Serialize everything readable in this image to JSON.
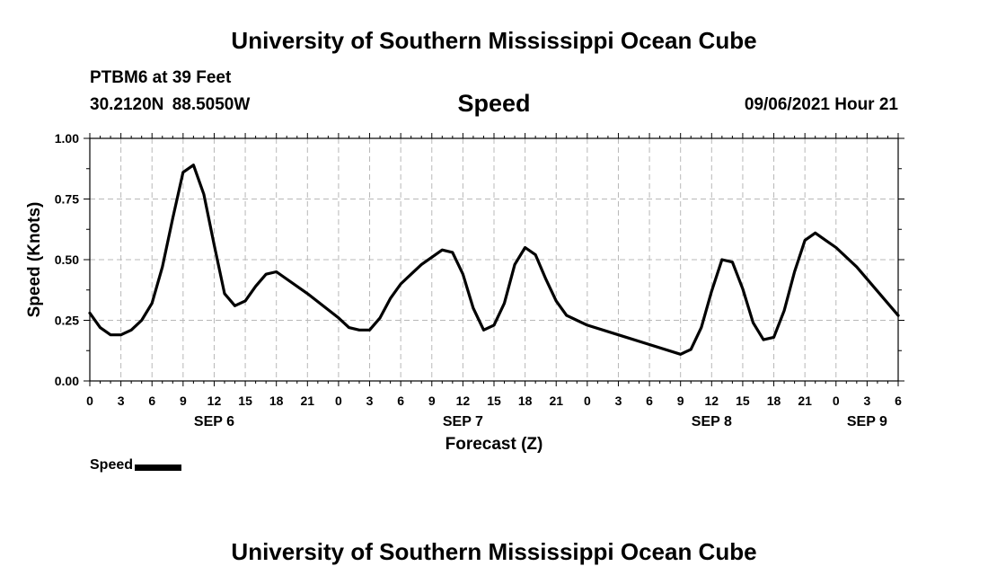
{
  "header": {
    "institution": "University of Southern Mississippi Ocean Cube",
    "station": "PTBM6 at 39 Feet",
    "latitude": "30.2120N",
    "longitude": "88.5050W",
    "variable": "Speed",
    "timestamp": "09/06/2021 Hour 21"
  },
  "footer": {
    "institution": "University of Southern Mississippi Ocean Cube"
  },
  "legend": {
    "label": "Speed",
    "color": "#000000"
  },
  "chart_data": {
    "type": "line",
    "title": "Speed",
    "xlabel": "Forecast (Z)",
    "ylabel": "Speed (Knots)",
    "x_unit": "hours from SEP 6 00Z",
    "xlim": [
      0,
      78
    ],
    "ylim": [
      0,
      1
    ],
    "grid": true,
    "legend_position": "bottom-left",
    "y_ticks": [
      "0.00",
      "0.25",
      "0.50",
      "0.75",
      "1.00"
    ],
    "x_tick_labels": [
      "0",
      "3",
      "6",
      "9",
      "12",
      "15",
      "18",
      "21",
      "0",
      "3",
      "6",
      "9",
      "12",
      "15",
      "18",
      "21",
      "0",
      "3",
      "6",
      "9",
      "12",
      "15",
      "18",
      "21",
      "0",
      "3",
      "6"
    ],
    "date_labels": [
      {
        "label": "SEP 6",
        "hour": 12
      },
      {
        "label": "SEP 7",
        "hour": 36
      },
      {
        "label": "SEP 8",
        "hour": 60
      },
      {
        "label": "SEP 9",
        "hour": 75
      }
    ],
    "series": [
      {
        "name": "Speed",
        "color": "#000000",
        "x": [
          0,
          1,
          2,
          3,
          4,
          5,
          6,
          7,
          8,
          9,
          10,
          11,
          12,
          13,
          14,
          15,
          16,
          17,
          18,
          21,
          24,
          25,
          26,
          27,
          28,
          29,
          30,
          31,
          32,
          33,
          34,
          35,
          36,
          37,
          38,
          39,
          40,
          41,
          42,
          43,
          44,
          45,
          46,
          47,
          48,
          51,
          54,
          57,
          58,
          59,
          60,
          61,
          62,
          63,
          64,
          65,
          66,
          67,
          68,
          69,
          70,
          71,
          72,
          74,
          76,
          78
        ],
        "values": [
          0.28,
          0.22,
          0.19,
          0.19,
          0.21,
          0.25,
          0.32,
          0.47,
          0.67,
          0.86,
          0.89,
          0.77,
          0.56,
          0.36,
          0.31,
          0.33,
          0.39,
          0.44,
          0.45,
          0.36,
          0.26,
          0.22,
          0.21,
          0.21,
          0.26,
          0.34,
          0.4,
          0.44,
          0.48,
          0.51,
          0.54,
          0.53,
          0.44,
          0.3,
          0.21,
          0.23,
          0.32,
          0.48,
          0.55,
          0.52,
          0.42,
          0.33,
          0.27,
          0.25,
          0.23,
          0.19,
          0.15,
          0.11,
          0.13,
          0.22,
          0.37,
          0.5,
          0.49,
          0.38,
          0.24,
          0.17,
          0.18,
          0.29,
          0.45,
          0.58,
          0.61,
          0.58,
          0.55,
          0.47,
          0.37,
          0.27
        ]
      }
    ]
  }
}
